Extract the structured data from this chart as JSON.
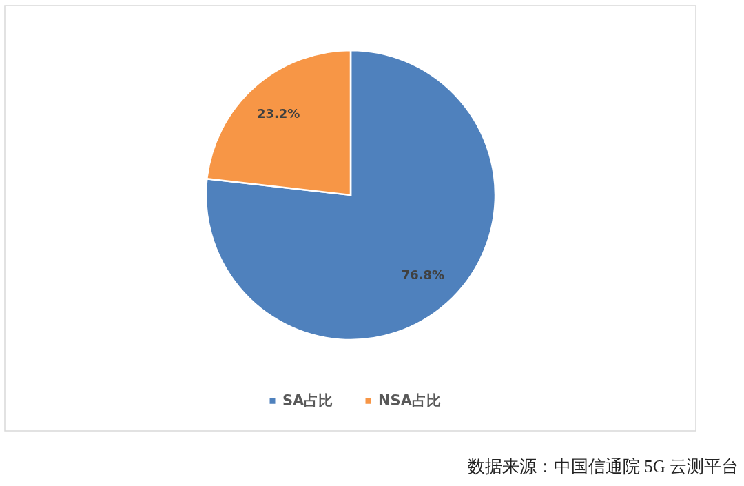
{
  "chart_data": {
    "type": "pie",
    "categories": [
      "SA占比",
      "NSA占比"
    ],
    "values": [
      76.8,
      23.2
    ],
    "colors": [
      "#4f81bd",
      "#f79646"
    ],
    "value_labels": [
      "76.8%",
      "23.2%"
    ],
    "legend": "bottom",
    "annotations": [
      "数据来源：中国信通院 5G 云测平台"
    ]
  }
}
